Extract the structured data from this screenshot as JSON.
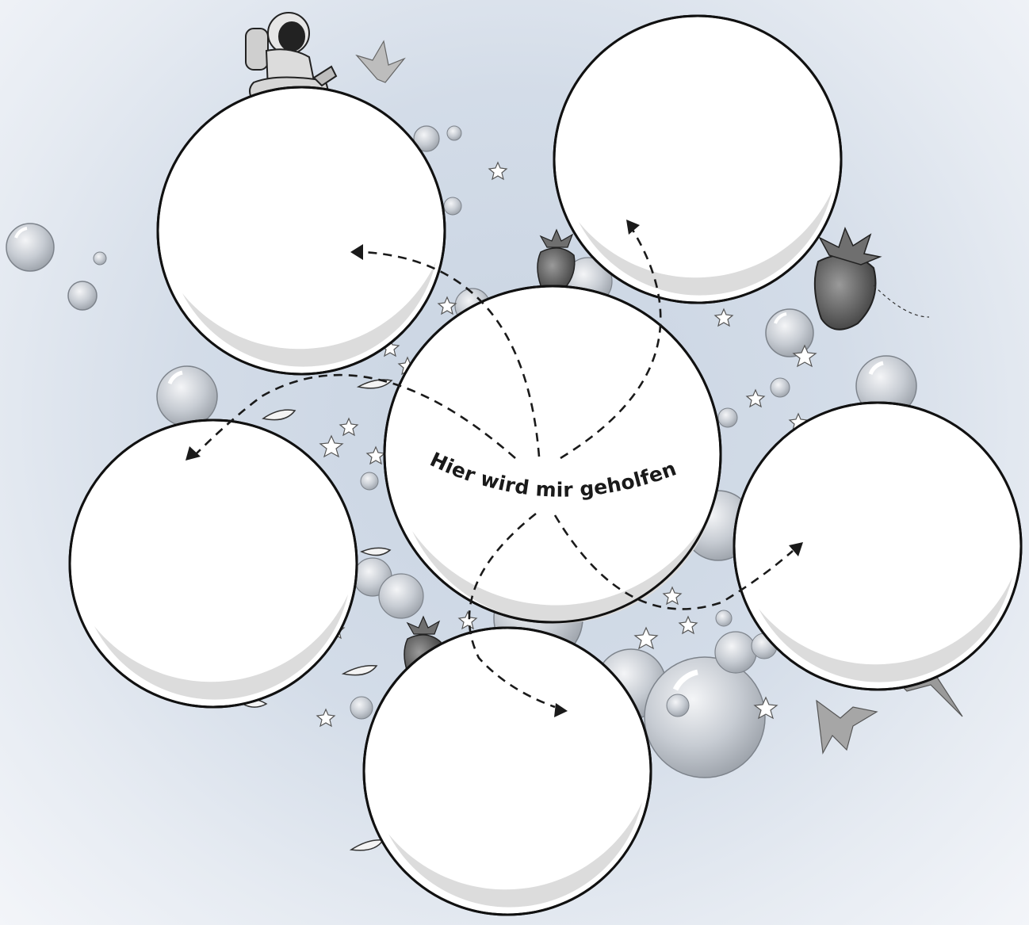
{
  "center": {
    "label": "Hier wird mir geholfen"
  },
  "bubbles": [
    {
      "id": "top-left",
      "text": ""
    },
    {
      "id": "top-right",
      "text": ""
    },
    {
      "id": "left",
      "text": ""
    },
    {
      "id": "right",
      "text": ""
    },
    {
      "id": "bottom",
      "text": ""
    }
  ],
  "colors": {
    "background": "#d3dce8",
    "bubble": "#ffffff",
    "bubble_shade": "#dcdcdc",
    "outline": "#111111",
    "decor_bubble": "#b9bec6"
  },
  "decorations": [
    "astronaut-icon",
    "strawberry-icon",
    "origami-crane-icon",
    "star-icon",
    "soap-bubble-icon",
    "feather-icon"
  ]
}
